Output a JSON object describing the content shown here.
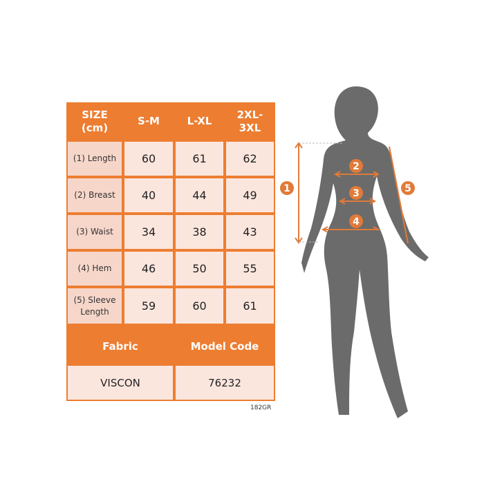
{
  "colors": {
    "accent": "#ED7D31",
    "label_cell": "#F7D6CA",
    "value_cell": "#FBE6DE",
    "silhouette": "#6B6B6B"
  },
  "table": {
    "header": [
      "SIZE\n(cm)",
      "S-M",
      "L-XL",
      "2XL-\n3XL"
    ],
    "rows": [
      {
        "label": "(1) Length",
        "values": [
          "60",
          "61",
          "62"
        ]
      },
      {
        "label": "(2) Breast",
        "values": [
          "40",
          "44",
          "49"
        ]
      },
      {
        "label": "(3) Waist",
        "values": [
          "34",
          "38",
          "43"
        ]
      },
      {
        "label": "(4) Hem",
        "values": [
          "46",
          "50",
          "55"
        ]
      },
      {
        "label": "(5) Sleeve Length",
        "values": [
          "59",
          "60",
          "61"
        ]
      }
    ],
    "fabric_header": "Fabric",
    "model_header": "Model Code",
    "fabric": "VISCON",
    "model_code": "76232"
  },
  "product_code": "182GR",
  "diagram": {
    "markers": [
      "1",
      "2",
      "3",
      "4",
      "5"
    ]
  }
}
